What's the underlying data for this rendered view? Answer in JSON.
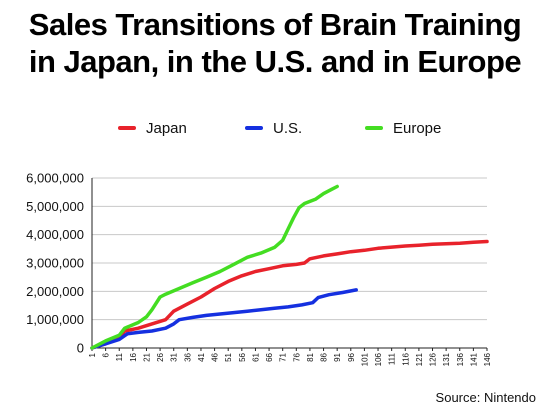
{
  "title_line1": "Sales Transitions of Brain Training",
  "title_line2": "in Japan, in the U.S. and in Europe",
  "source": "Source: Nintendo",
  "chart_data": {
    "type": "line",
    "title": "Sales Transitions of Brain Training in Japan, in the U.S. and in Europe",
    "xlabel": "",
    "ylabel": "",
    "xlim": [
      1,
      146
    ],
    "ylim": [
      0,
      6000000
    ],
    "x_ticks": [
      1,
      6,
      11,
      16,
      21,
      26,
      31,
      36,
      41,
      46,
      51,
      56,
      61,
      66,
      71,
      76,
      81,
      86,
      91,
      96,
      101,
      106,
      111,
      116,
      121,
      126,
      131,
      136,
      141,
      146
    ],
    "y_ticks": [
      0,
      1000000,
      2000000,
      3000000,
      4000000,
      5000000,
      6000000
    ],
    "y_tick_labels": [
      "0",
      "1,000,000",
      "2,000,000",
      "3,000,000",
      "4,000,000",
      "5,000,000",
      "6,000,000"
    ],
    "grid": "horizontal",
    "legend_position": "top",
    "series": [
      {
        "name": "Japan",
        "color": "#e8222b",
        "points": [
          [
            1,
            0
          ],
          [
            6,
            150000
          ],
          [
            11,
            350000
          ],
          [
            13,
            600000
          ],
          [
            18,
            700000
          ],
          [
            23,
            850000
          ],
          [
            28,
            1000000
          ],
          [
            31,
            1300000
          ],
          [
            36,
            1550000
          ],
          [
            41,
            1800000
          ],
          [
            46,
            2100000
          ],
          [
            51,
            2350000
          ],
          [
            56,
            2550000
          ],
          [
            61,
            2700000
          ],
          [
            66,
            2800000
          ],
          [
            71,
            2900000
          ],
          [
            76,
            2950000
          ],
          [
            79,
            3000000
          ],
          [
            81,
            3150000
          ],
          [
            86,
            3250000
          ],
          [
            91,
            3320000
          ],
          [
            96,
            3400000
          ],
          [
            101,
            3450000
          ],
          [
            106,
            3520000
          ],
          [
            111,
            3560000
          ],
          [
            116,
            3600000
          ],
          [
            121,
            3630000
          ],
          [
            126,
            3660000
          ],
          [
            131,
            3680000
          ],
          [
            136,
            3700000
          ],
          [
            141,
            3730000
          ],
          [
            146,
            3760000
          ]
        ]
      },
      {
        "name": "U.S.",
        "color": "#1530e0",
        "points": [
          [
            1,
            0
          ],
          [
            6,
            150000
          ],
          [
            11,
            300000
          ],
          [
            14,
            500000
          ],
          [
            18,
            550000
          ],
          [
            23,
            600000
          ],
          [
            28,
            700000
          ],
          [
            31,
            850000
          ],
          [
            33,
            1000000
          ],
          [
            38,
            1080000
          ],
          [
            43,
            1150000
          ],
          [
            48,
            1200000
          ],
          [
            53,
            1250000
          ],
          [
            58,
            1300000
          ],
          [
            63,
            1350000
          ],
          [
            68,
            1400000
          ],
          [
            73,
            1450000
          ],
          [
            78,
            1520000
          ],
          [
            82,
            1600000
          ],
          [
            84,
            1780000
          ],
          [
            88,
            1880000
          ],
          [
            93,
            1960000
          ],
          [
            98,
            2050000
          ]
        ]
      },
      {
        "name": "Europe",
        "color": "#44dd22",
        "points": [
          [
            1,
            0
          ],
          [
            6,
            250000
          ],
          [
            11,
            450000
          ],
          [
            13,
            700000
          ],
          [
            18,
            900000
          ],
          [
            21,
            1100000
          ],
          [
            23,
            1350000
          ],
          [
            26,
            1800000
          ],
          [
            28,
            1900000
          ],
          [
            33,
            2100000
          ],
          [
            38,
            2300000
          ],
          [
            43,
            2500000
          ],
          [
            48,
            2700000
          ],
          [
            53,
            2950000
          ],
          [
            58,
            3200000
          ],
          [
            63,
            3350000
          ],
          [
            68,
            3550000
          ],
          [
            71,
            3800000
          ],
          [
            73,
            4200000
          ],
          [
            75,
            4600000
          ],
          [
            77,
            4950000
          ],
          [
            79,
            5100000
          ],
          [
            83,
            5250000
          ],
          [
            86,
            5450000
          ],
          [
            89,
            5600000
          ],
          [
            91,
            5700000
          ]
        ]
      }
    ]
  }
}
